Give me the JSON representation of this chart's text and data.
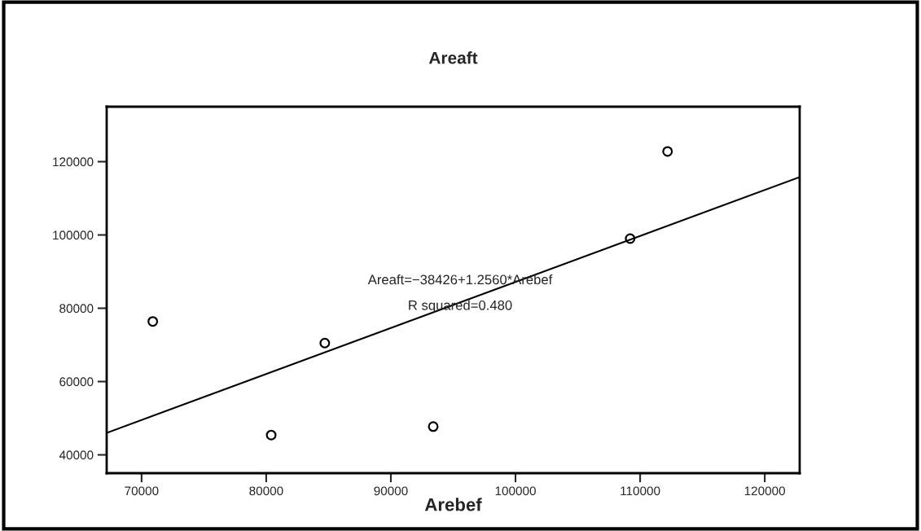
{
  "chart_data": {
    "type": "scatter",
    "title": "Areaft",
    "xlabel": "Arebef",
    "series": [
      {
        "color": "#000000",
        "marker": "circle",
        "x": [
          70900,
          80400,
          84700,
          93400,
          109200,
          112200
        ],
        "values": [
          76400,
          45400,
          70500,
          47700,
          99000,
          122800
        ]
      },
      {
        "type": "line",
        "color": "#000000",
        "x": [
          67200,
          122800
        ],
        "values": [
          46000,
          115800
        ]
      }
    ],
    "annotations": [
      "Areaft=−38426+1.2560*Arebef",
      "R squared=0.480"
    ],
    "xlim": [
      67200,
      122800
    ],
    "xticks": [
      70000,
      80000,
      90000,
      100000,
      110000,
      120000
    ],
    "ylim": [
      35000,
      135000
    ],
    "yticks": [
      40000,
      60000,
      80000,
      100000,
      120000
    ],
    "grid": false,
    "legend": false
  }
}
